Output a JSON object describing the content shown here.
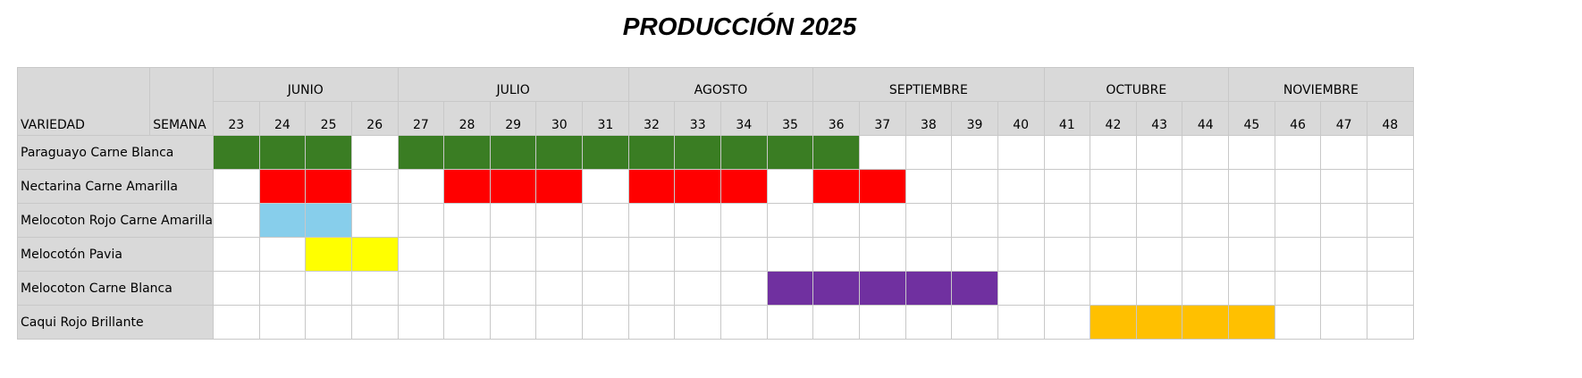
{
  "title": "PRODUCCIÓN 2025",
  "header": {
    "variedad_label": "VARIEDAD",
    "semana_label": "SEMANA"
  },
  "months": [
    {
      "label": "JUNIO",
      "weeks": 4
    },
    {
      "label": "JULIO",
      "weeks": 5
    },
    {
      "label": "AGOSTO",
      "weeks": 4
    },
    {
      "label": "SEPTIEMBRE",
      "weeks": 5
    },
    {
      "label": "OCTUBRE",
      "weeks": 4
    },
    {
      "label": "NOVIEMBRE",
      "weeks": 4
    }
  ],
  "weeks": [
    "23",
    "24",
    "25",
    "26",
    "27",
    "28",
    "29",
    "30",
    "31",
    "32",
    "33",
    "34",
    "35",
    "36",
    "37",
    "38",
    "39",
    "40",
    "41",
    "42",
    "43",
    "44",
    "45",
    "46",
    "47",
    "48"
  ],
  "varieties": [
    {
      "name": "Paraguayo Carne Blanca",
      "color": "#3a7d23",
      "weeks": [
        23,
        24,
        25,
        27,
        28,
        29,
        30,
        31,
        32,
        33,
        34,
        35,
        36
      ]
    },
    {
      "name": "Nectarina Carne Amarilla",
      "color": "#ff0000",
      "weeks": [
        24,
        25,
        28,
        29,
        30,
        32,
        33,
        34,
        36,
        37
      ]
    },
    {
      "name": "Melocoton Rojo Carne Amarilla",
      "color": "#87ceeb",
      "weeks": [
        24,
        25
      ]
    },
    {
      "name": "Melocotón Pavia",
      "color": "#ffff00",
      "weeks": [
        25,
        26
      ]
    },
    {
      "name": "Melocoton Carne Blanca",
      "color": "#7030a0",
      "weeks": [
        35,
        36,
        37,
        38,
        39
      ]
    },
    {
      "name": "Caqui Rojo Brillante",
      "color": "#ffc000",
      "weeks": [
        42,
        43,
        44,
        45
      ]
    }
  ]
}
